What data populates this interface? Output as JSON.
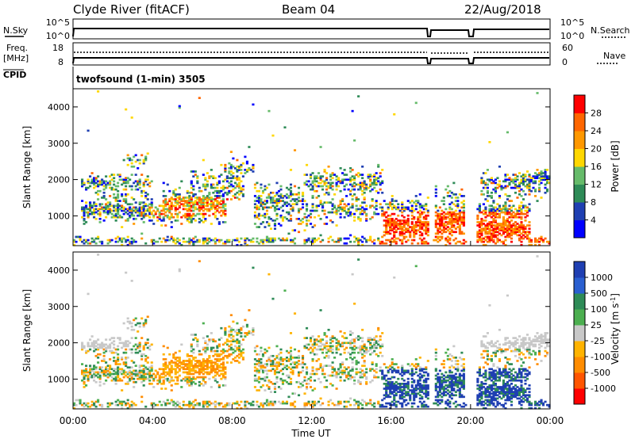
{
  "header": {
    "station": "Clyde River (fitACF)",
    "beam": "Beam 04",
    "date": "22/Aug/2018"
  },
  "panels": {
    "nsky_label": "N.Sky",
    "nsearch_label": "N.Search",
    "freq_label_1": "Freq.",
    "freq_label_2": "[MHz]",
    "nave_label": "Nave",
    "cpid_label": "CPID",
    "cpid_value": "twofsound (1-min) 3505",
    "noise_ticks": [
      "10^5",
      "10^0"
    ],
    "freq_ticks": [
      "18",
      "8"
    ],
    "nave_ticks": [
      "60",
      "0"
    ]
  },
  "chart_data": [
    {
      "type": "heatmap",
      "name": "power",
      "ylabel": "Slant Range [km]",
      "xlabel": "",
      "ylim": [
        180,
        4500
      ],
      "yticks": [
        "1000",
        "2000",
        "3000",
        "4000"
      ],
      "colorbar_label": "Power [dB]",
      "colorbar_ticks": [
        "4",
        "8",
        "12",
        "16",
        "20",
        "24",
        "28"
      ],
      "colors": [
        "#0000ff",
        "#1f3fb2",
        "#2e8b57",
        "#66bb6a",
        "#ffd700",
        "#ff9800",
        "#ff6600",
        "#ff0000"
      ]
    },
    {
      "type": "heatmap",
      "name": "velocity",
      "ylabel": "Slant Range [km]",
      "xlabel": "Time UT",
      "ylim": [
        180,
        4500
      ],
      "yticks": [
        "1000",
        "2000",
        "3000",
        "4000"
      ],
      "xticks": [
        "00:00",
        "04:00",
        "08:00",
        "12:00",
        "16:00",
        "20:00",
        "00:00"
      ],
      "colorbar_label": "Velocity [m s",
      "colorbar_label_sup": "-1",
      "colorbar_label_end": "]",
      "colorbar_ticks": [
        "1000",
        "500",
        "100",
        "25",
        "-25",
        "-100",
        "-500",
        "-1000"
      ],
      "colors": [
        "#1f3fb2",
        "#2a5fd0",
        "#2e8b57",
        "#4caf50",
        "#c8c8c8",
        "#ffb300",
        "#ff8c00",
        "#ff5500",
        "#ff0000"
      ]
    }
  ]
}
